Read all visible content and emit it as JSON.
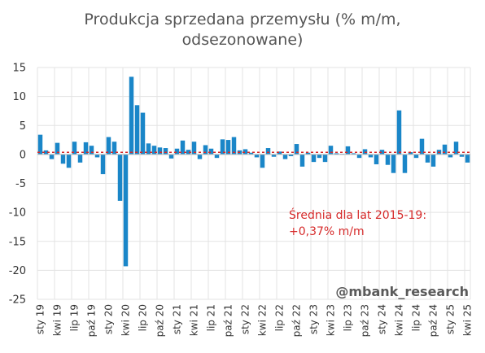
{
  "chart_data": {
    "type": "bar",
    "title_lines": [
      "Produkcja sprzedana przemysłu (% m/m,",
      "odsezonowane)"
    ],
    "xlabel": "",
    "ylabel": "",
    "ylim": [
      -25,
      15
    ],
    "yticks": [
      15,
      10,
      5,
      0,
      -5,
      -10,
      -15,
      -20,
      -25
    ],
    "grid": true,
    "bar_color": "#1a86c8",
    "average_line": {
      "value": 0.37,
      "color": "#d62a2a",
      "label_lines": [
        "Średnia dla lat 2015-19:",
        "+0,37% m/m"
      ]
    },
    "x_tick_labels": [
      {
        "index": 0,
        "label": "sty 19"
      },
      {
        "index": 3,
        "label": "kwi 19"
      },
      {
        "index": 6,
        "label": "lip 19"
      },
      {
        "index": 9,
        "label": "paź 19"
      },
      {
        "index": 12,
        "label": "sty 20"
      },
      {
        "index": 15,
        "label": "kwi 20"
      },
      {
        "index": 18,
        "label": "lip 20"
      },
      {
        "index": 21,
        "label": "paź 20"
      },
      {
        "index": 24,
        "label": "sty 21"
      },
      {
        "index": 27,
        "label": "kwi 21"
      },
      {
        "index": 30,
        "label": "lip 21"
      },
      {
        "index": 33,
        "label": "paź 21"
      },
      {
        "index": 36,
        "label": "sty 22"
      },
      {
        "index": 39,
        "label": "kwi 22"
      },
      {
        "index": 42,
        "label": "lip 22"
      },
      {
        "index": 45,
        "label": "paź 22"
      },
      {
        "index": 48,
        "label": "sty 23"
      },
      {
        "index": 51,
        "label": "kwi 23"
      },
      {
        "index": 54,
        "label": "lip 23"
      },
      {
        "index": 57,
        "label": "paź 23"
      },
      {
        "index": 60,
        "label": "sty 24"
      },
      {
        "index": 63,
        "label": "kwi 24"
      },
      {
        "index": 66,
        "label": "lip 24"
      },
      {
        "index": 69,
        "label": "paź 24"
      },
      {
        "index": 72,
        "label": "sty 25"
      },
      {
        "index": 75,
        "label": "kwi 25"
      }
    ],
    "values": [
      3.4,
      0.7,
      -0.8,
      2.0,
      -1.6,
      -2.3,
      2.2,
      -1.4,
      2.1,
      1.5,
      -0.5,
      -3.4,
      3.0,
      2.2,
      -8.0,
      -19.3,
      13.4,
      8.5,
      7.2,
      1.9,
      1.5,
      1.2,
      1.1,
      -0.7,
      1.0,
      2.4,
      0.8,
      2.2,
      -0.8,
      1.6,
      1.0,
      -0.6,
      2.6,
      2.5,
      3.0,
      0.7,
      0.9,
      0.3,
      -0.5,
      -2.3,
      1.1,
      -0.4,
      0.5,
      -0.8,
      -0.3,
      1.8,
      -2.1,
      0.3,
      -1.3,
      -0.6,
      -1.3,
      1.5,
      0.2,
      0.1,
      1.4,
      0.2,
      -0.6,
      0.9,
      -0.5,
      -1.7,
      0.8,
      -1.8,
      -3.2,
      7.6,
      -3.2,
      0.4,
      -0.6,
      2.7,
      -1.4,
      -2.1,
      0.8,
      1.7,
      -0.5,
      2.2,
      -0.4,
      -1.4
    ]
  },
  "watermark": "@mbank_research"
}
